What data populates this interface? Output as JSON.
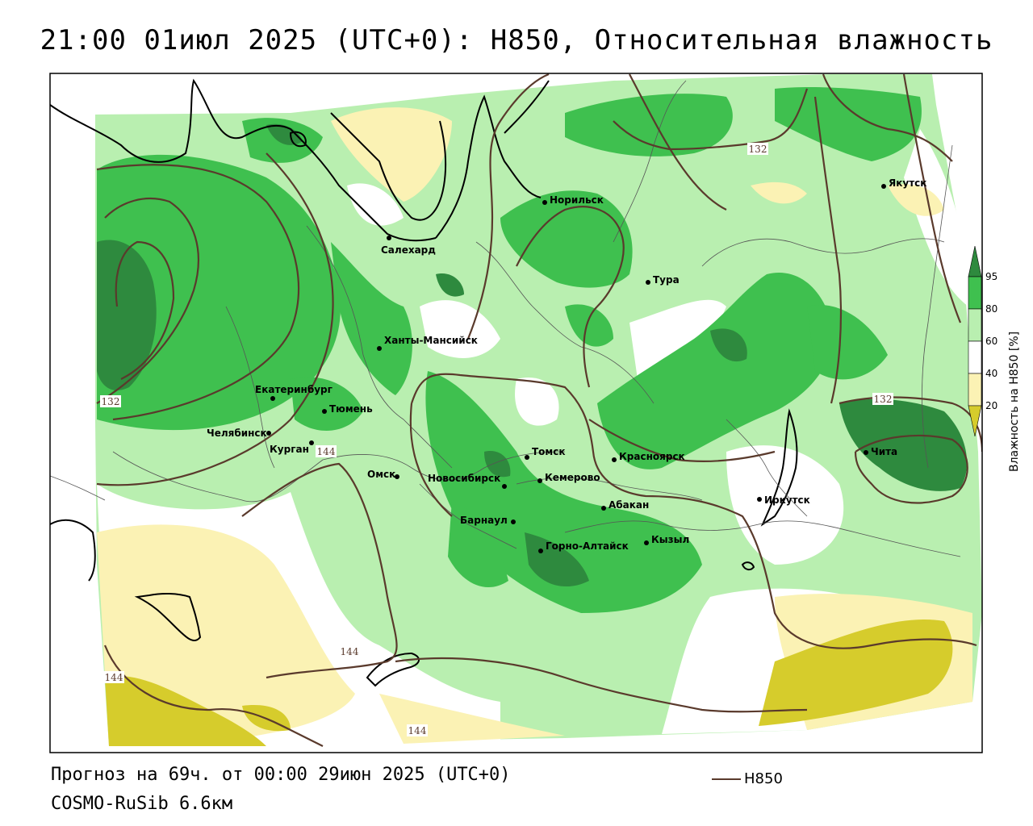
{
  "title": "21:00 01июл 2025 (UTC+0): H850, Относительная влажность",
  "forecast_line": "Прогноз на 69ч. от 00:00 29июн 2025 (UTC+0)",
  "model_line": "COSMO-RuSib 6.6км",
  "legend": {
    "line_label": "H850",
    "line_color": "#5a3a2c"
  },
  "colorbar": {
    "title": "Влажность на H850 [%]",
    "ticks": [
      "95",
      "80",
      "60",
      "40",
      "20"
    ],
    "colors": {
      "over95": "#2e8a3e",
      "95-80": "#3fc04f",
      "80-60": "#b9efb0",
      "60-40": "#ffffff",
      "40-20": "#fbf2b4",
      "under20": "#d6cc2c"
    }
  },
  "cities": [
    "Якутск",
    "Норильск",
    "Салехард",
    "Тура",
    "Ханты-Мансийск",
    "Екатеринбург",
    "Тюмень",
    "Челябинск",
    "Курган",
    "Омск",
    "Новосибирск",
    "Томск",
    "Кемерово",
    "Красноярск",
    "Барнаул",
    "Абакан",
    "Горно-Алтайск",
    "Кызыл",
    "Иркутск",
    "Чита"
  ],
  "isoline_labels": [
    "132",
    "132",
    "132",
    "144",
    "144",
    "144",
    "144"
  ]
}
